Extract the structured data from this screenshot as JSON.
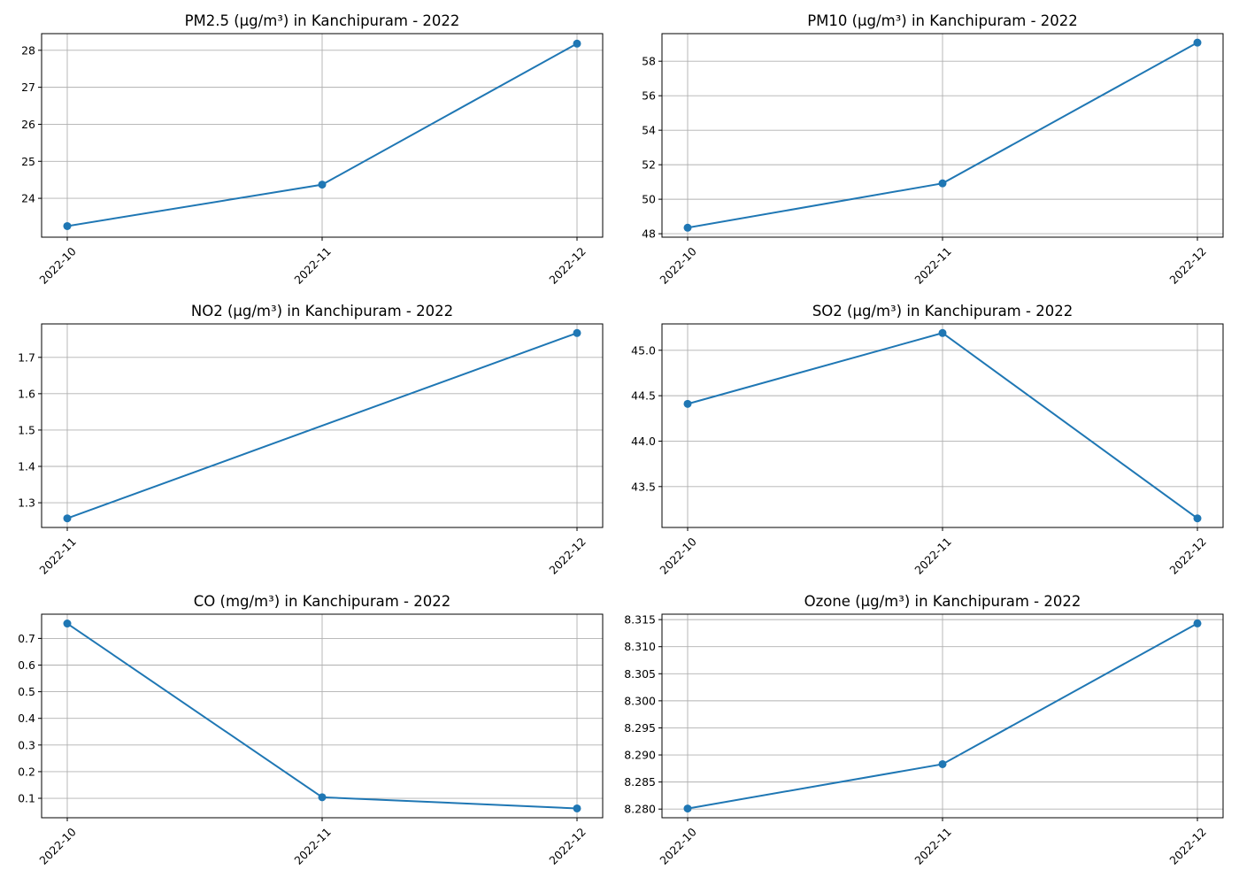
{
  "chart_data": [
    {
      "type": "line",
      "title": "PM2.5 (µg/m³) in Kanchipuram - 2022",
      "x": [
        "2022-10",
        "2022-11",
        "2022-12"
      ],
      "series": [
        {
          "values": [
            23.25,
            24.37,
            28.18
          ]
        }
      ],
      "ylim": [
        22.95,
        28.45
      ],
      "yticks": [
        24,
        25,
        26,
        27,
        28
      ],
      "ytick_labels": [
        "24",
        "25",
        "26",
        "27",
        "28"
      ],
      "grid": true
    },
    {
      "type": "line",
      "title": "PM10 (µg/m³) in Kanchipuram - 2022",
      "x": [
        "2022-10",
        "2022-11",
        "2022-12"
      ],
      "series": [
        {
          "values": [
            48.35,
            50.92,
            59.08
          ]
        }
      ],
      "ylim": [
        47.8,
        59.6
      ],
      "yticks": [
        48,
        50,
        52,
        54,
        56,
        58
      ],
      "ytick_labels": [
        "48",
        "50",
        "52",
        "54",
        "56",
        "58"
      ],
      "grid": true
    },
    {
      "type": "line",
      "title": "NO2 (µg/m³) in Kanchipuram - 2022",
      "x": [
        "2022-11",
        "2022-12"
      ],
      "series": [
        {
          "values": [
            1.257,
            1.767
          ]
        }
      ],
      "ylim": [
        1.232,
        1.792
      ],
      "yticks": [
        1.3,
        1.4,
        1.5,
        1.6,
        1.7
      ],
      "ytick_labels": [
        "1.3",
        "1.4",
        "1.5",
        "1.6",
        "1.7"
      ],
      "grid": true
    },
    {
      "type": "line",
      "title": "SO2 (µg/m³) in Kanchipuram - 2022",
      "x": [
        "2022-10",
        "2022-11",
        "2022-12"
      ],
      "series": [
        {
          "values": [
            44.41,
            45.19,
            43.15
          ]
        }
      ],
      "ylim": [
        43.05,
        45.29
      ],
      "yticks": [
        43.5,
        44.0,
        44.5,
        45.0
      ],
      "ytick_labels": [
        "43.5",
        "44.0",
        "44.5",
        "45.0"
      ],
      "grid": true
    },
    {
      "type": "line",
      "title": "CO (mg/m³) in Kanchipuram - 2022",
      "x": [
        "2022-10",
        "2022-11",
        "2022-12"
      ],
      "series": [
        {
          "values": [
            0.756,
            0.104,
            0.062
          ]
        }
      ],
      "ylim": [
        0.027,
        0.791
      ],
      "yticks": [
        0.1,
        0.2,
        0.3,
        0.4,
        0.5,
        0.6,
        0.7
      ],
      "ytick_labels": [
        "0.1",
        "0.2",
        "0.3",
        "0.4",
        "0.5",
        "0.6",
        "0.7"
      ],
      "grid": true
    },
    {
      "type": "line",
      "title": "Ozone (µg/m³) in Kanchipuram - 2022",
      "x": [
        "2022-10",
        "2022-11",
        "2022-12"
      ],
      "series": [
        {
          "values": [
            8.2801,
            8.2883,
            8.3143
          ]
        }
      ],
      "ylim": [
        8.2784,
        8.316
      ],
      "yticks": [
        8.28,
        8.285,
        8.29,
        8.295,
        8.3,
        8.305,
        8.31,
        8.315
      ],
      "ytick_labels": [
        "8.280",
        "8.285",
        "8.290",
        "8.295",
        "8.300",
        "8.305",
        "8.310",
        "8.315"
      ],
      "grid": true
    }
  ],
  "colors": {
    "series": "#1f77b4",
    "grid": "#b0b0b0",
    "frame": "#000000"
  }
}
